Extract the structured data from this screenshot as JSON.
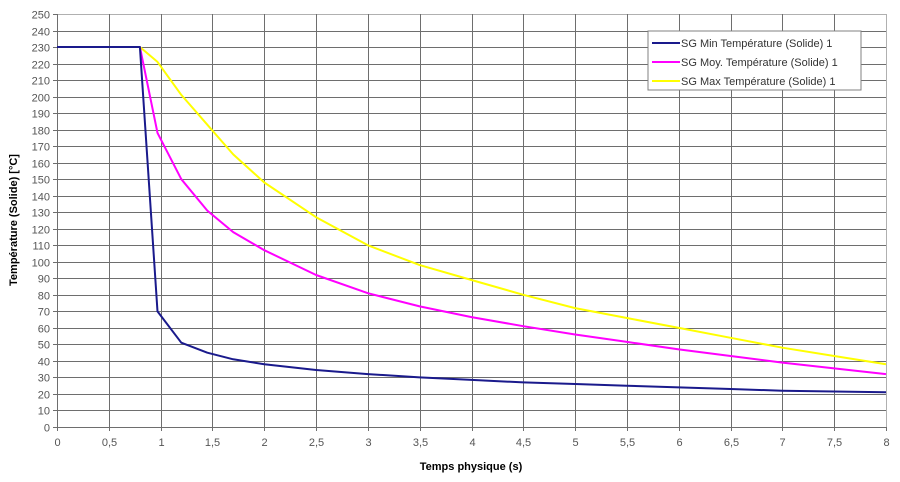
{
  "chart_data": {
    "type": "line",
    "title": "",
    "xlabel": "Temps physique (s)",
    "ylabel": "Température (Solide)  [°C]",
    "xlim": [
      0,
      8
    ],
    "ylim": [
      0,
      250
    ],
    "x_ticks": [
      "0",
      "0,5",
      "1",
      "1,5",
      "2",
      "2,5",
      "3",
      "3,5",
      "4",
      "4,5",
      "5",
      "5,5",
      "6",
      "6,5",
      "7",
      "7,5",
      "8"
    ],
    "y_ticks": [
      "0",
      "10",
      "20",
      "30",
      "40",
      "50",
      "60",
      "70",
      "80",
      "90",
      "100",
      "110",
      "120",
      "130",
      "140",
      "150",
      "160",
      "170",
      "180",
      "190",
      "200",
      "210",
      "220",
      "230",
      "240",
      "250"
    ],
    "grid": true,
    "legend_position": "top-right",
    "series": [
      {
        "name": "SG Min Température (Solide) 1",
        "color": "#1a1a8c",
        "x": [
          0,
          0.8,
          0.97,
          1.2,
          1.45,
          1.7,
          2.0,
          2.5,
          3.0,
          3.5,
          4.0,
          4.5,
          5.0,
          5.5,
          6.0,
          6.5,
          7.0,
          7.5,
          8.0
        ],
        "values": [
          230,
          230,
          70,
          51,
          45,
          41,
          38,
          34.5,
          32,
          30,
          28.5,
          27,
          26,
          25,
          24,
          23,
          22,
          21.5,
          21
        ]
      },
      {
        "name": "SG Moy. Température (Solide) 1",
        "color": "#ff00ff",
        "x": [
          0,
          0.8,
          0.97,
          1.2,
          1.45,
          1.7,
          2.0,
          2.5,
          3.0,
          3.5,
          4.0,
          4.5,
          5.0,
          5.5,
          6.0,
          6.5,
          7.0,
          7.5,
          8.0
        ],
        "values": [
          230,
          230,
          178,
          150,
          131,
          118,
          107,
          92,
          81,
          73,
          66.5,
          61,
          56,
          51.5,
          47,
          43,
          39,
          35.5,
          32
        ]
      },
      {
        "name": "SG Max Température (Solide) 1",
        "color": "#ffff00",
        "x": [
          0,
          0.8,
          0.97,
          1.2,
          1.45,
          1.7,
          2.0,
          2.5,
          3.0,
          3.5,
          4.0,
          4.5,
          5.0,
          5.5,
          6.0,
          6.5,
          7.0,
          7.5,
          8.0
        ],
        "values": [
          230,
          230,
          221,
          201,
          183,
          165,
          148,
          127,
          110,
          98,
          89,
          80,
          72,
          66,
          60,
          54,
          48,
          43,
          38
        ]
      }
    ]
  }
}
